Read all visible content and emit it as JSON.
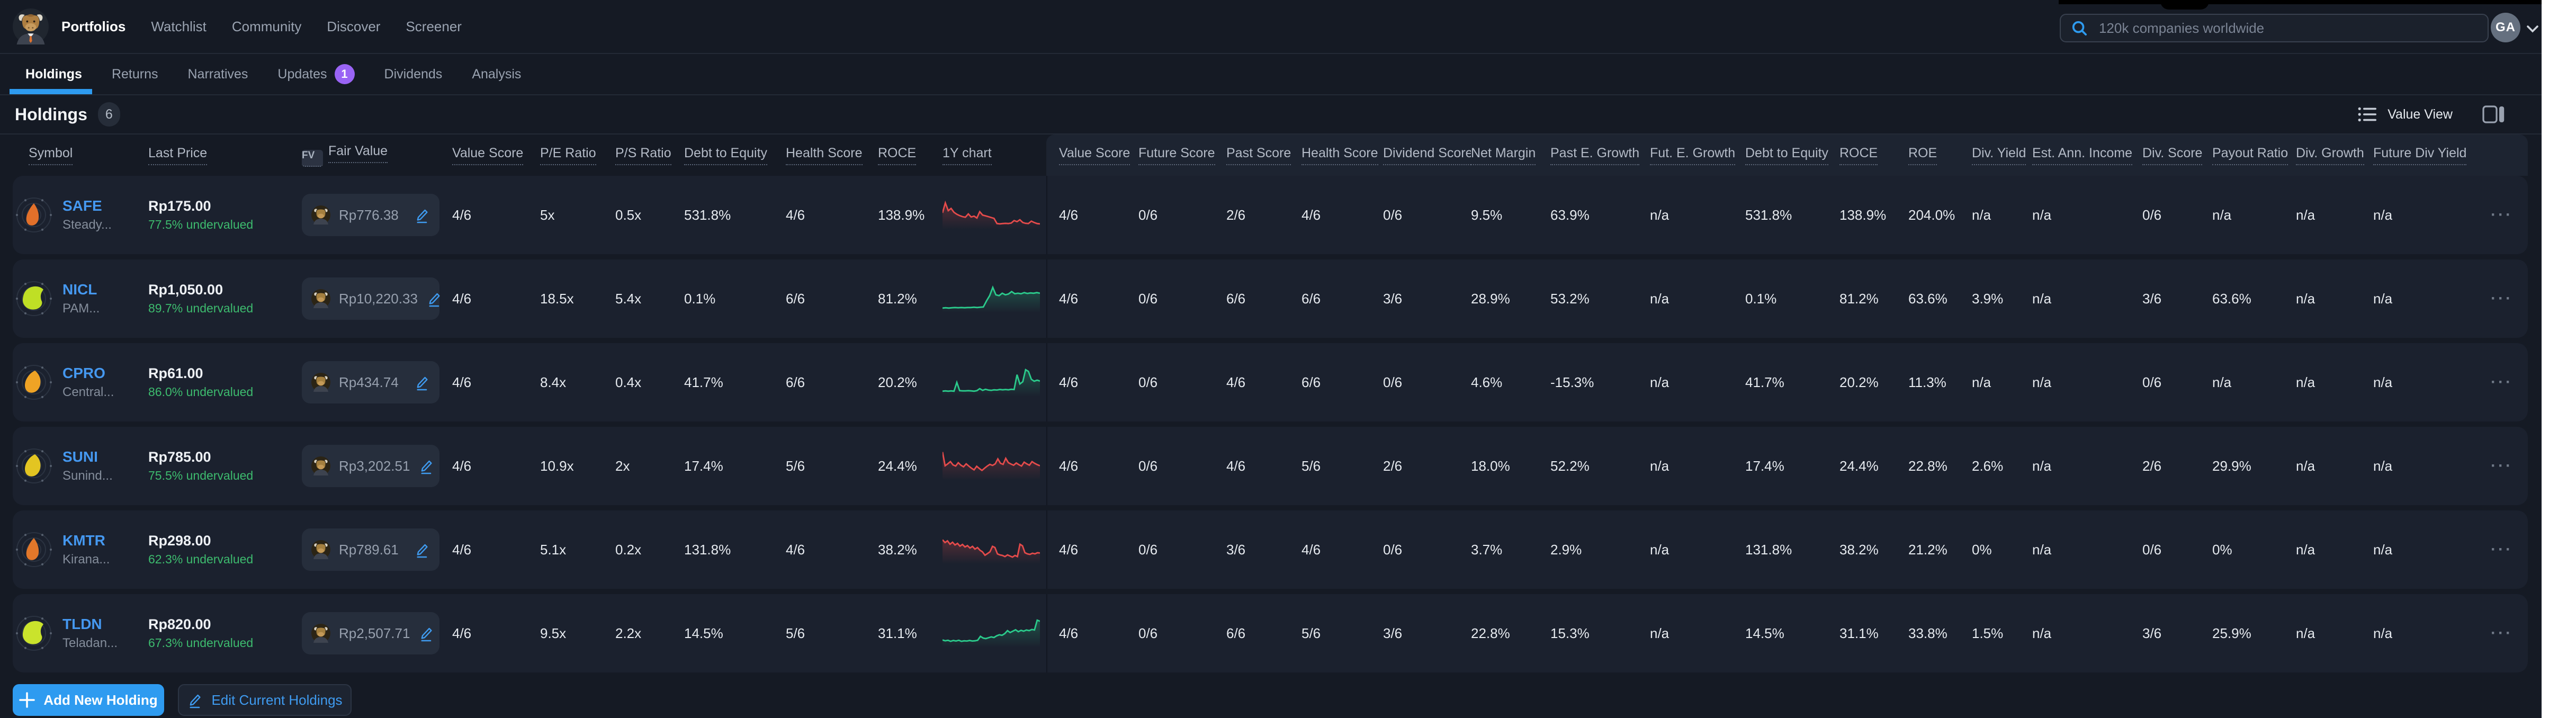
{
  "colors": {
    "accent_blue": "#2e9bf0",
    "ticker_blue": "#4598f0",
    "green": "#3dbb6e",
    "spark_green": "#2bcb8c",
    "spark_red": "#e54b4b",
    "purple": "#9a64f5"
  },
  "topnav": {
    "logo_icon": "bull-logo",
    "items": [
      {
        "label": "Portfolios",
        "active": true
      },
      {
        "label": "Watchlist",
        "active": false
      },
      {
        "label": "Community",
        "active": false
      },
      {
        "label": "Discover",
        "active": false
      },
      {
        "label": "Screener",
        "active": false
      }
    ],
    "search_placeholder": "120k companies worldwide",
    "avatar_initials": "GA"
  },
  "tabs": [
    {
      "label": "Holdings",
      "active": true,
      "badge": ""
    },
    {
      "label": "Returns",
      "active": false,
      "badge": ""
    },
    {
      "label": "Narratives",
      "active": false,
      "badge": ""
    },
    {
      "label": "Updates",
      "active": false,
      "badge": "1"
    },
    {
      "label": "Dividends",
      "active": false,
      "badge": ""
    },
    {
      "label": "Analysis",
      "active": false,
      "badge": ""
    }
  ],
  "heading": {
    "title": "Holdings",
    "count": "6",
    "view_label": "Value View"
  },
  "table": {
    "fv_badge": "FV",
    "headers_left": [
      "Symbol",
      "Last Price",
      "Fair Value",
      "Value Score",
      "P/E Ratio",
      "P/S Ratio",
      "Debt to Equity",
      "Health Score",
      "ROCE",
      "1Y chart"
    ],
    "headers_right": [
      "Value Score",
      "Future Score",
      "Past Score",
      "Health Score",
      "Dividend Score",
      "Net Margin",
      "Past E. Growth",
      "Fut. E. Growth",
      "Debt to Equity",
      "ROCE",
      "ROE",
      "Div. Yield",
      "Est. Ann. Income",
      "Div. Score",
      "Payout Ratio",
      "Div. Growth",
      "Future Div Yield"
    ],
    "actions_glyph": "···"
  },
  "rows": [
    {
      "symbol": "SAFE",
      "name": "Steady...",
      "last_price": "Rp175.00",
      "valuation": "77.5% undervalued",
      "fair_value": "Rp776.38",
      "flake_color": "#e2702a",
      "flake_shape": "flame",
      "value_score": "4/6",
      "pe_ratio": "5x",
      "ps_ratio": "0.5x",
      "debt_to_equity": "531.8%",
      "health_score": "4/6",
      "roce": "138.9%",
      "spark_color": "red",
      "spark": [
        52,
        88,
        60,
        68,
        54,
        47,
        42,
        38,
        36,
        48,
        37,
        40,
        33,
        56,
        44,
        41,
        38,
        35,
        32,
        13,
        12,
        13,
        14,
        13,
        15,
        24,
        20,
        27,
        17,
        14,
        13,
        22,
        17,
        13,
        12
      ],
      "ext": [
        "4/6",
        "0/6",
        "2/6",
        "4/6",
        "0/6",
        "9.5%",
        "63.9%",
        "n/a",
        "531.8%",
        "138.9%",
        "204.0%",
        "n/a",
        "n/a",
        "0/6",
        "n/a",
        "n/a",
        "n/a"
      ]
    },
    {
      "symbol": "NICL",
      "name": "PAM...",
      "last_price": "Rp1,050.00",
      "valuation": "89.7% undervalued",
      "fair_value": "Rp10,220.33",
      "flake_color": "#bfdf25",
      "flake_shape": "wide",
      "value_score": "4/6",
      "pe_ratio": "18.5x",
      "ps_ratio": "5.4x",
      "debt_to_equity": "0.1%",
      "health_score": "6/6",
      "roce": "81.2%",
      "spark_color": "green",
      "spark": [
        10,
        11,
        10,
        11,
        12,
        11,
        12,
        11,
        12,
        12,
        13,
        12,
        13,
        14,
        36,
        55,
        85,
        58,
        55,
        64,
        58,
        61,
        70,
        62,
        64,
        62,
        66,
        63,
        65,
        64,
        66,
        64
      ],
      "ext": [
        "4/6",
        "0/6",
        "6/6",
        "6/6",
        "3/6",
        "28.9%",
        "53.2%",
        "n/a",
        "0.1%",
        "81.2%",
        "63.6%",
        "3.9%",
        "n/a",
        "3/6",
        "63.6%",
        "n/a",
        "n/a"
      ]
    },
    {
      "symbol": "CPRO",
      "name": "Central...",
      "last_price": "Rp61.00",
      "valuation": "86.0% undervalued",
      "fair_value": "Rp434.74",
      "flake_color": "#efa325",
      "flake_shape": "blob",
      "value_score": "4/6",
      "pe_ratio": "8.4x",
      "ps_ratio": "0.4x",
      "debt_to_equity": "41.7%",
      "health_score": "6/6",
      "roce": "20.2%",
      "spark_color": "green",
      "spark": [
        12,
        13,
        12,
        13,
        12,
        44,
        14,
        13,
        13,
        14,
        13,
        12,
        14,
        21,
        15,
        19,
        16,
        15,
        17,
        16,
        18,
        17,
        18,
        17,
        19,
        18,
        72,
        38,
        46,
        90,
        84,
        55,
        48,
        52,
        49
      ],
      "ext": [
        "4/6",
        "0/6",
        "4/6",
        "6/6",
        "0/6",
        "4.6%",
        "-15.3%",
        "n/a",
        "41.7%",
        "20.2%",
        "11.3%",
        "n/a",
        "n/a",
        "0/6",
        "n/a",
        "n/a",
        "n/a"
      ]
    },
    {
      "symbol": "SUNI",
      "name": "Sunind...",
      "last_price": "Rp785.00",
      "valuation": "75.5% undervalued",
      "fair_value": "Rp3,202.51",
      "flake_color": "#e3c522",
      "flake_shape": "blob",
      "value_score": "4/6",
      "pe_ratio": "10.9x",
      "ps_ratio": "2x",
      "debt_to_equity": "17.4%",
      "health_score": "5/6",
      "roce": "24.4%",
      "spark_color": "red",
      "spark": [
        95,
        45,
        52,
        60,
        48,
        44,
        56,
        47,
        41,
        52,
        44,
        36,
        30,
        43,
        35,
        28,
        36,
        44,
        50,
        46,
        52,
        70,
        54,
        50,
        72,
        56,
        51,
        47,
        55,
        49,
        44,
        58,
        52,
        47,
        60,
        54,
        49,
        45
      ],
      "ext": [
        "4/6",
        "0/6",
        "4/6",
        "5/6",
        "2/6",
        "18.0%",
        "52.2%",
        "n/a",
        "17.4%",
        "24.4%",
        "22.8%",
        "2.6%",
        "n/a",
        "2/6",
        "29.9%",
        "n/a",
        "n/a"
      ]
    },
    {
      "symbol": "KMTR",
      "name": "Kirana...",
      "last_price": "Rp298.00",
      "valuation": "62.3% undervalued",
      "fair_value": "Rp789.61",
      "flake_color": "#e2772a",
      "flake_shape": "flame",
      "value_score": "4/6",
      "pe_ratio": "5.1x",
      "ps_ratio": "0.2x",
      "debt_to_equity": "131.8%",
      "health_score": "4/6",
      "roce": "38.2%",
      "spark_color": "red",
      "spark": [
        80,
        70,
        76,
        64,
        71,
        61,
        67,
        57,
        63,
        54,
        59,
        50,
        56,
        46,
        52,
        42,
        36,
        24,
        30,
        36,
        56,
        52,
        29,
        25,
        23,
        19,
        25,
        21,
        17,
        23,
        19,
        64,
        58,
        33,
        29,
        27,
        31,
        29,
        33,
        32
      ],
      "ext": [
        "4/6",
        "0/6",
        "3/6",
        "4/6",
        "0/6",
        "3.7%",
        "2.9%",
        "n/a",
        "131.8%",
        "38.2%",
        "21.2%",
        "0%",
        "n/a",
        "0/6",
        "0%",
        "n/a",
        "n/a"
      ]
    },
    {
      "symbol": "TLDN",
      "name": "Teladan...",
      "last_price": "Rp820.00",
      "valuation": "67.3% undervalued",
      "fair_value": "Rp2,507.71",
      "flake_color": "#cae32c",
      "flake_shape": "wide",
      "value_score": "4/6",
      "pe_ratio": "9.5x",
      "ps_ratio": "2.2x",
      "debt_to_equity": "14.5%",
      "health_score": "5/6",
      "roce": "31.1%",
      "spark_color": "green",
      "spark": [
        20,
        17,
        19,
        15,
        18,
        16,
        19,
        15,
        17,
        16,
        18,
        16,
        17,
        19,
        33,
        27,
        25,
        28,
        31,
        29,
        35,
        39,
        37,
        43,
        54,
        47,
        52,
        57,
        50,
        55,
        52,
        56,
        54,
        58,
        56,
        92,
        88
      ],
      "ext": [
        "4/6",
        "0/6",
        "6/6",
        "5/6",
        "3/6",
        "22.8%",
        "15.3%",
        "n/a",
        "14.5%",
        "31.1%",
        "33.8%",
        "1.5%",
        "n/a",
        "3/6",
        "25.9%",
        "n/a",
        "n/a"
      ]
    }
  ],
  "footer": {
    "add_button": "Add New Holding",
    "edit_button": "Edit Current Holdings"
  }
}
